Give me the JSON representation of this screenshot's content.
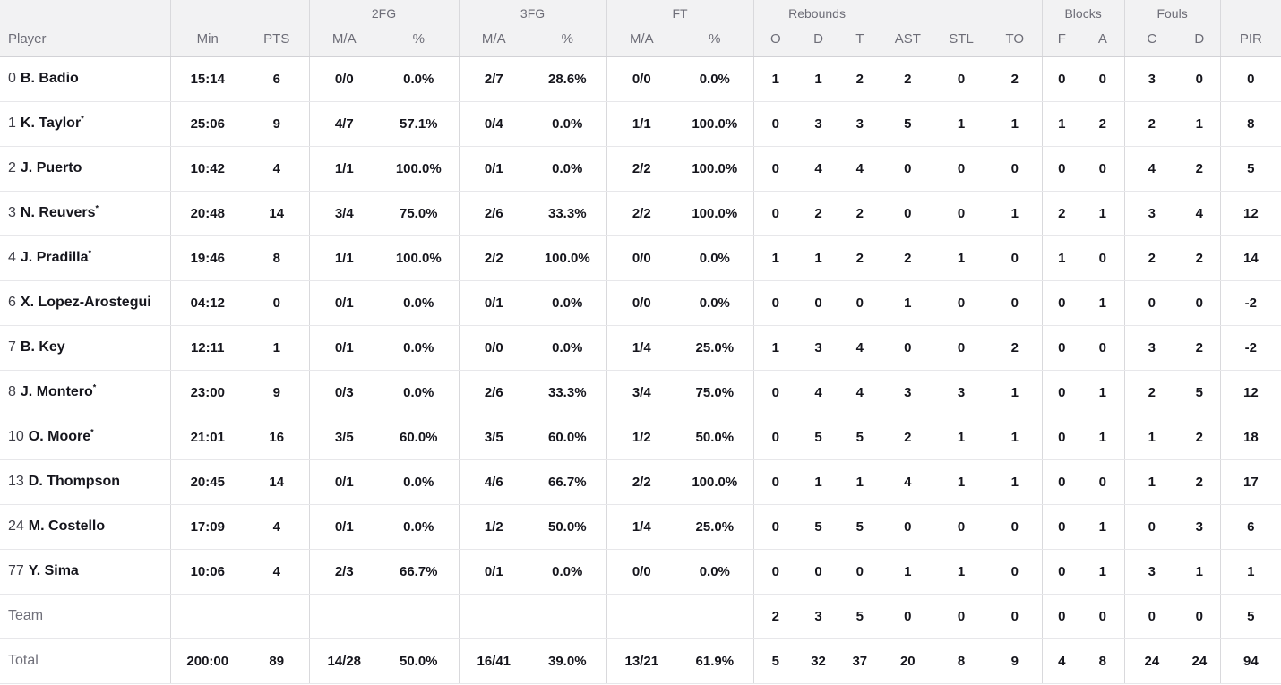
{
  "table": {
    "group_headers": {
      "fg2": "2FG",
      "fg3": "3FG",
      "ft": "FT",
      "rebounds": "Rebounds",
      "blocks": "Blocks",
      "fouls": "Fouls"
    },
    "sub_headers": {
      "player": "Player",
      "min": "Min",
      "pts": "PTS",
      "ma": "M/A",
      "pct": "%",
      "o": "O",
      "d": "D",
      "t": "T",
      "ast": "AST",
      "stl": "STL",
      "to": "TO",
      "f": "F",
      "a": "A",
      "c": "C",
      "pir": "PIR"
    },
    "rows": [
      {
        "num": "0",
        "name": "B. Badio",
        "starter": false,
        "min": "15:14",
        "pts": "6",
        "fg2_ma": "0/0",
        "fg2_pct": "0.0%",
        "fg3_ma": "2/7",
        "fg3_pct": "28.6%",
        "ft_ma": "0/0",
        "ft_pct": "0.0%",
        "reb_o": "1",
        "reb_d": "1",
        "reb_t": "2",
        "ast": "2",
        "stl": "0",
        "to": "2",
        "blk_f": "0",
        "blk_a": "0",
        "foul_c": "3",
        "foul_d": "0",
        "pir": "0"
      },
      {
        "num": "1",
        "name": "K. Taylor",
        "starter": true,
        "min": "25:06",
        "pts": "9",
        "fg2_ma": "4/7",
        "fg2_pct": "57.1%",
        "fg3_ma": "0/4",
        "fg3_pct": "0.0%",
        "ft_ma": "1/1",
        "ft_pct": "100.0%",
        "reb_o": "0",
        "reb_d": "3",
        "reb_t": "3",
        "ast": "5",
        "stl": "1",
        "to": "1",
        "blk_f": "1",
        "blk_a": "2",
        "foul_c": "2",
        "foul_d": "1",
        "pir": "8"
      },
      {
        "num": "2",
        "name": "J. Puerto",
        "starter": false,
        "min": "10:42",
        "pts": "4",
        "fg2_ma": "1/1",
        "fg2_pct": "100.0%",
        "fg3_ma": "0/1",
        "fg3_pct": "0.0%",
        "ft_ma": "2/2",
        "ft_pct": "100.0%",
        "reb_o": "0",
        "reb_d": "4",
        "reb_t": "4",
        "ast": "0",
        "stl": "0",
        "to": "0",
        "blk_f": "0",
        "blk_a": "0",
        "foul_c": "4",
        "foul_d": "2",
        "pir": "5"
      },
      {
        "num": "3",
        "name": "N. Reuvers",
        "starter": true,
        "min": "20:48",
        "pts": "14",
        "fg2_ma": "3/4",
        "fg2_pct": "75.0%",
        "fg3_ma": "2/6",
        "fg3_pct": "33.3%",
        "ft_ma": "2/2",
        "ft_pct": "100.0%",
        "reb_o": "0",
        "reb_d": "2",
        "reb_t": "2",
        "ast": "0",
        "stl": "0",
        "to": "1",
        "blk_f": "2",
        "blk_a": "1",
        "foul_c": "3",
        "foul_d": "4",
        "pir": "12"
      },
      {
        "num": "4",
        "name": "J. Pradilla",
        "starter": true,
        "min": "19:46",
        "pts": "8",
        "fg2_ma": "1/1",
        "fg2_pct": "100.0%",
        "fg3_ma": "2/2",
        "fg3_pct": "100.0%",
        "ft_ma": "0/0",
        "ft_pct": "0.0%",
        "reb_o": "1",
        "reb_d": "1",
        "reb_t": "2",
        "ast": "2",
        "stl": "1",
        "to": "0",
        "blk_f": "1",
        "blk_a": "0",
        "foul_c": "2",
        "foul_d": "2",
        "pir": "14"
      },
      {
        "num": "6",
        "name": "X. Lopez-Arostegui",
        "starter": false,
        "min": "04:12",
        "pts": "0",
        "fg2_ma": "0/1",
        "fg2_pct": "0.0%",
        "fg3_ma": "0/1",
        "fg3_pct": "0.0%",
        "ft_ma": "0/0",
        "ft_pct": "0.0%",
        "reb_o": "0",
        "reb_d": "0",
        "reb_t": "0",
        "ast": "1",
        "stl": "0",
        "to": "0",
        "blk_f": "0",
        "blk_a": "1",
        "foul_c": "0",
        "foul_d": "0",
        "pir": "-2"
      },
      {
        "num": "7",
        "name": "B. Key",
        "starter": false,
        "min": "12:11",
        "pts": "1",
        "fg2_ma": "0/1",
        "fg2_pct": "0.0%",
        "fg3_ma": "0/0",
        "fg3_pct": "0.0%",
        "ft_ma": "1/4",
        "ft_pct": "25.0%",
        "reb_o": "1",
        "reb_d": "3",
        "reb_t": "4",
        "ast": "0",
        "stl": "0",
        "to": "2",
        "blk_f": "0",
        "blk_a": "0",
        "foul_c": "3",
        "foul_d": "2",
        "pir": "-2"
      },
      {
        "num": "8",
        "name": "J. Montero",
        "starter": true,
        "min": "23:00",
        "pts": "9",
        "fg2_ma": "0/3",
        "fg2_pct": "0.0%",
        "fg3_ma": "2/6",
        "fg3_pct": "33.3%",
        "ft_ma": "3/4",
        "ft_pct": "75.0%",
        "reb_o": "0",
        "reb_d": "4",
        "reb_t": "4",
        "ast": "3",
        "stl": "3",
        "to": "1",
        "blk_f": "0",
        "blk_a": "1",
        "foul_c": "2",
        "foul_d": "5",
        "pir": "12"
      },
      {
        "num": "10",
        "name": "O. Moore",
        "starter": true,
        "min": "21:01",
        "pts": "16",
        "fg2_ma": "3/5",
        "fg2_pct": "60.0%",
        "fg3_ma": "3/5",
        "fg3_pct": "60.0%",
        "ft_ma": "1/2",
        "ft_pct": "50.0%",
        "reb_o": "0",
        "reb_d": "5",
        "reb_t": "5",
        "ast": "2",
        "stl": "1",
        "to": "1",
        "blk_f": "0",
        "blk_a": "1",
        "foul_c": "1",
        "foul_d": "2",
        "pir": "18"
      },
      {
        "num": "13",
        "name": "D. Thompson",
        "starter": false,
        "min": "20:45",
        "pts": "14",
        "fg2_ma": "0/1",
        "fg2_pct": "0.0%",
        "fg3_ma": "4/6",
        "fg3_pct": "66.7%",
        "ft_ma": "2/2",
        "ft_pct": "100.0%",
        "reb_o": "0",
        "reb_d": "1",
        "reb_t": "1",
        "ast": "4",
        "stl": "1",
        "to": "1",
        "blk_f": "0",
        "blk_a": "0",
        "foul_c": "1",
        "foul_d": "2",
        "pir": "17"
      },
      {
        "num": "24",
        "name": "M. Costello",
        "starter": false,
        "min": "17:09",
        "pts": "4",
        "fg2_ma": "0/1",
        "fg2_pct": "0.0%",
        "fg3_ma": "1/2",
        "fg3_pct": "50.0%",
        "ft_ma": "1/4",
        "ft_pct": "25.0%",
        "reb_o": "0",
        "reb_d": "5",
        "reb_t": "5",
        "ast": "0",
        "stl": "0",
        "to": "0",
        "blk_f": "0",
        "blk_a": "1",
        "foul_c": "0",
        "foul_d": "3",
        "pir": "6"
      },
      {
        "num": "77",
        "name": "Y. Sima",
        "starter": false,
        "min": "10:06",
        "pts": "4",
        "fg2_ma": "2/3",
        "fg2_pct": "66.7%",
        "fg3_ma": "0/1",
        "fg3_pct": "0.0%",
        "ft_ma": "0/0",
        "ft_pct": "0.0%",
        "reb_o": "0",
        "reb_d": "0",
        "reb_t": "0",
        "ast": "1",
        "stl": "1",
        "to": "0",
        "blk_f": "0",
        "blk_a": "1",
        "foul_c": "3",
        "foul_d": "1",
        "pir": "1"
      },
      {
        "label": "Team",
        "min": "",
        "pts": "",
        "fg2_ma": "",
        "fg2_pct": "",
        "fg3_ma": "",
        "fg3_pct": "",
        "ft_ma": "",
        "ft_pct": "",
        "reb_o": "2",
        "reb_d": "3",
        "reb_t": "5",
        "ast": "0",
        "stl": "0",
        "to": "0",
        "blk_f": "0",
        "blk_a": "0",
        "foul_c": "0",
        "foul_d": "0",
        "pir": "5"
      },
      {
        "label": "Total",
        "min": "200:00",
        "pts": "89",
        "fg2_ma": "14/28",
        "fg2_pct": "50.0%",
        "fg3_ma": "16/41",
        "fg3_pct": "39.0%",
        "ft_ma": "13/21",
        "ft_pct": "61.9%",
        "reb_o": "5",
        "reb_d": "32",
        "reb_t": "37",
        "ast": "20",
        "stl": "8",
        "to": "9",
        "blk_f": "4",
        "blk_a": "8",
        "foul_c": "24",
        "foul_d": "24",
        "pir": "94"
      }
    ]
  }
}
